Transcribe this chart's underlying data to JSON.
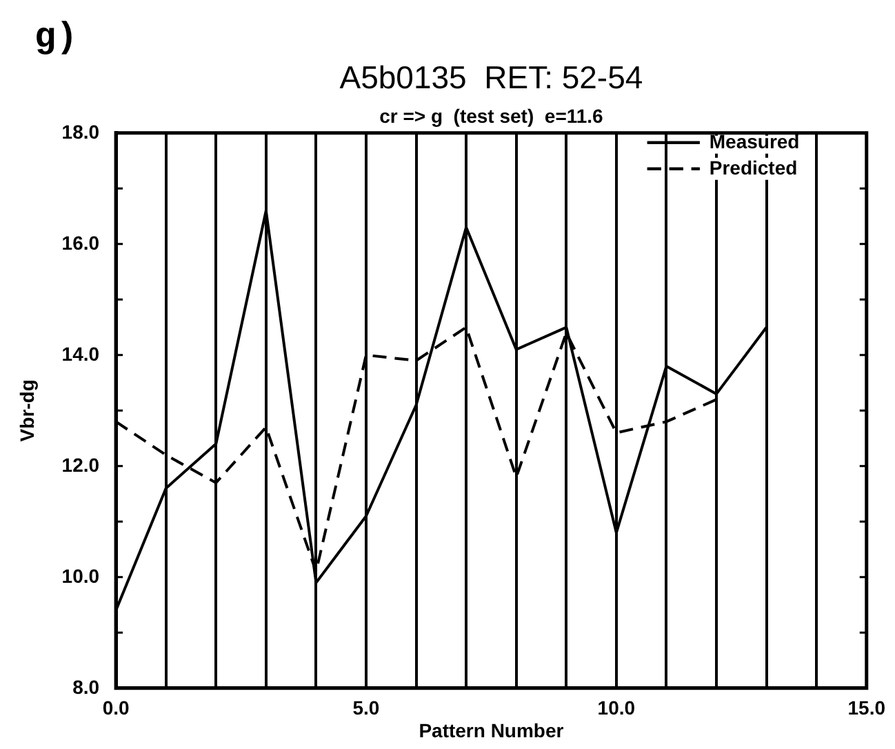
{
  "chart_data": {
    "type": "line",
    "title": "A5b0135  RET: 52-54",
    "subtitle": "cr => g  (test set)  e=11.6",
    "xlabel": "Pattern Number",
    "ylabel": "Vbr-dg",
    "annotations": [
      "g)"
    ],
    "x": [
      0,
      1,
      2,
      3,
      4,
      5,
      6,
      7,
      8,
      9,
      10,
      11,
      12,
      13
    ],
    "series": [
      {
        "name": "Measured",
        "color": "#000000",
        "line_style": "solid",
        "values": [
          9.4,
          11.6,
          12.4,
          16.6,
          9.9,
          11.1,
          13.1,
          16.3,
          14.1,
          14.5,
          10.8,
          13.8,
          13.3,
          14.5
        ]
      },
      {
        "name": "Predicted",
        "color": "#000000",
        "line_style": "dashed",
        "values": [
          12.8,
          12.2,
          11.7,
          12.7,
          10.1,
          14.0,
          13.9,
          14.5,
          11.8,
          14.4,
          12.6,
          12.8,
          13.2,
          null
        ]
      }
    ],
    "xlim": [
      0,
      15
    ],
    "ylim": [
      8,
      18
    ],
    "xticks": [
      {
        "value": 0,
        "label": "0.0"
      },
      {
        "value": 1,
        "label": null
      },
      {
        "value": 2,
        "label": null
      },
      {
        "value": 3,
        "label": null
      },
      {
        "value": 4,
        "label": null
      },
      {
        "value": 5,
        "label": "5.0"
      },
      {
        "value": 6,
        "label": null
      },
      {
        "value": 7,
        "label": null
      },
      {
        "value": 8,
        "label": null
      },
      {
        "value": 9,
        "label": null
      },
      {
        "value": 10,
        "label": "10.0"
      },
      {
        "value": 11,
        "label": null
      },
      {
        "value": 12,
        "label": null
      },
      {
        "value": 13,
        "label": null
      },
      {
        "value": 14,
        "label": null
      },
      {
        "value": 15,
        "label": "15.0"
      }
    ],
    "yticks": [
      {
        "value": 8,
        "label": "8.0"
      },
      {
        "value": 9,
        "label": null
      },
      {
        "value": 10,
        "label": "10.0"
      },
      {
        "value": 11,
        "label": null
      },
      {
        "value": 12,
        "label": "12.0"
      },
      {
        "value": 13,
        "label": null
      },
      {
        "value": 14,
        "label": "14.0"
      },
      {
        "value": 15,
        "label": null
      },
      {
        "value": 16,
        "label": "16.0"
      },
      {
        "value": 17,
        "label": null
      },
      {
        "value": 18,
        "label": "18.0"
      }
    ],
    "grid": "x",
    "legend": "top right"
  }
}
